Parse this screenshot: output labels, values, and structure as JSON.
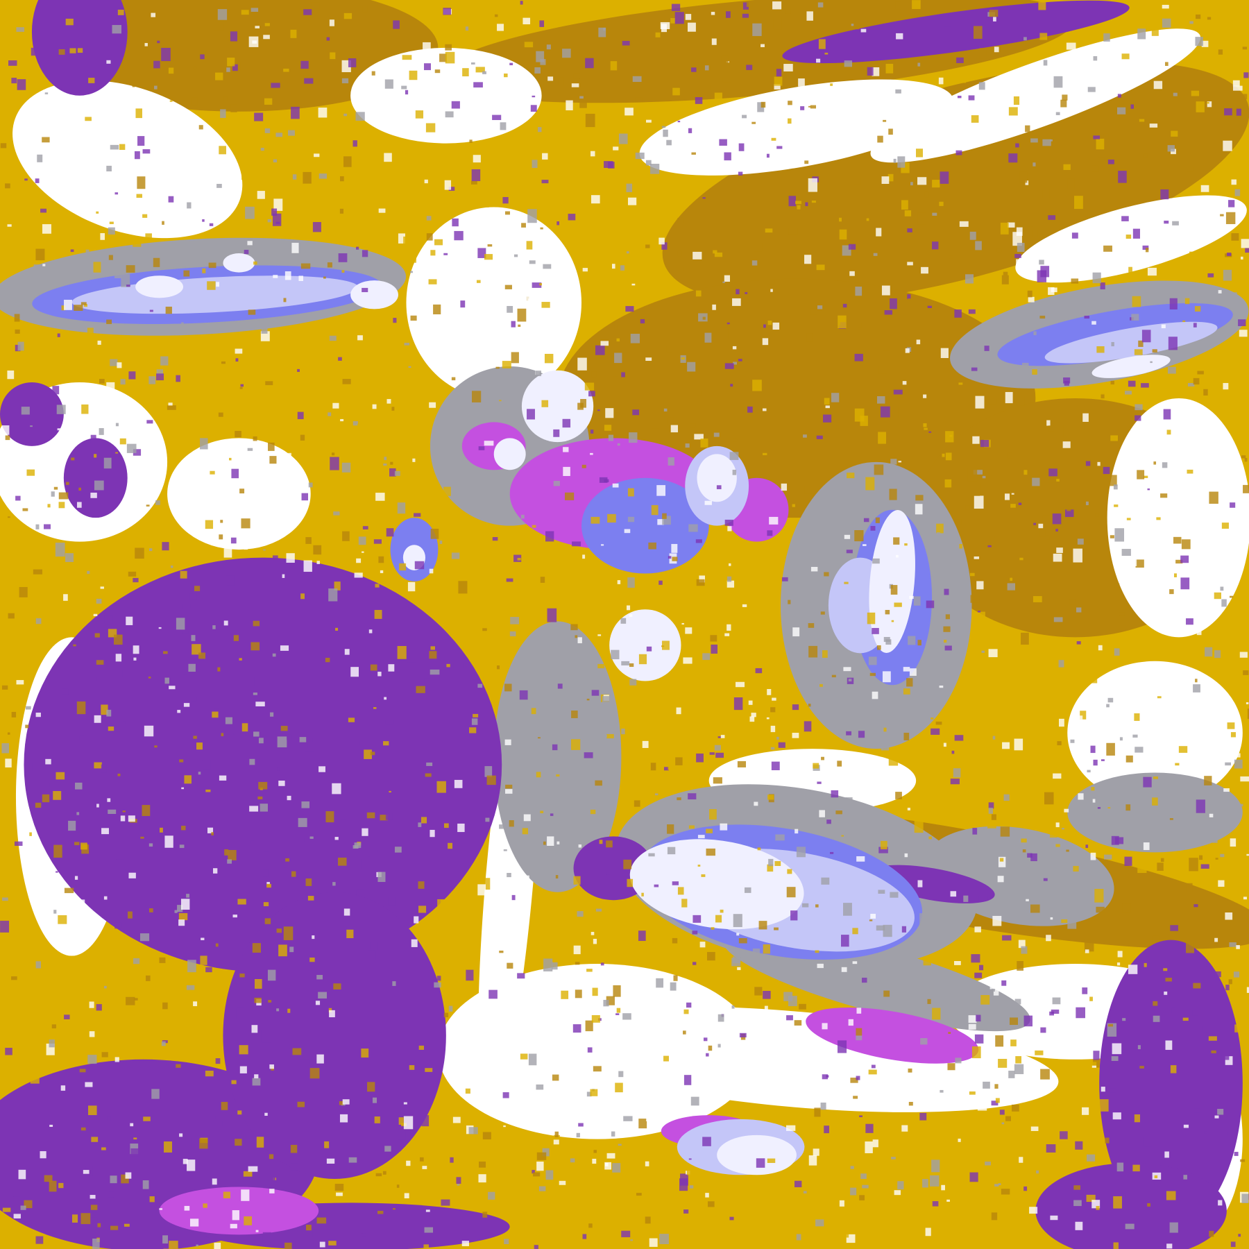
{
  "image": {
    "kind": "false-color infrared satellite image",
    "palette": {
      "clear": "#ffffff",
      "gold": "#dcb000",
      "dark_gold": "#b8860b",
      "gray": "#a0a0a8",
      "light_gray": "#c8c8d0",
      "purple": "#7d34b4",
      "magenta": "#c450e0",
      "blue": "#7c7ff0",
      "lavender": "#c4c6f8",
      "pale": "#f0f0ff"
    }
  }
}
